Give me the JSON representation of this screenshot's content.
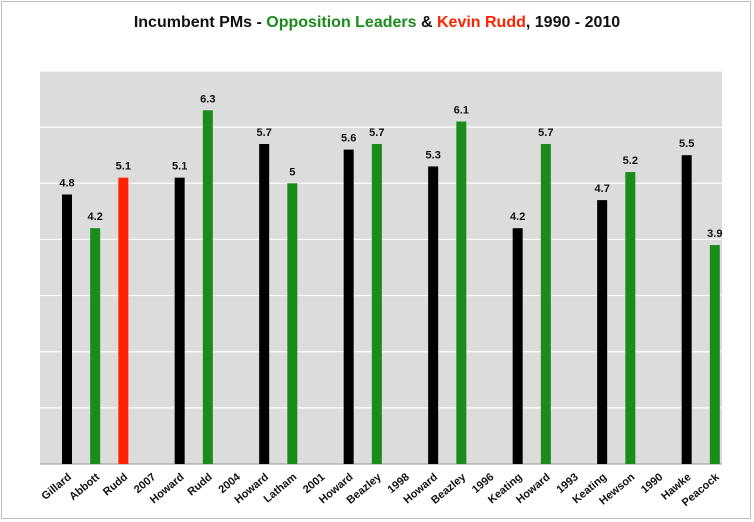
{
  "title_parts": {
    "part1": "Incumbent PMs - ",
    "part2": "Opposition  Leaders",
    "part3": " & ",
    "part4": "Kevin Rudd",
    "part5": ", 1990 - 2010"
  },
  "colors": {
    "incumbent": "#000000",
    "opposition": "#1a8c1a",
    "rudd": "#ff2200",
    "plot_bg": "#dcdcdc",
    "grid": "#ffffff"
  },
  "chart_data": {
    "type": "bar",
    "title": "Incumbent PMs - Opposition  Leaders & Kevin Rudd, 1990 - 2010",
    "xlabel": "",
    "ylabel": "",
    "ylim": [
      0,
      7
    ],
    "grid": true,
    "legend": "none",
    "categories": [
      "Gillard",
      "Abbott",
      "Rudd",
      "2007",
      "Howard",
      "Rudd",
      "2004",
      "Howard",
      "Latham",
      "2001",
      "Howard",
      "Beazley",
      "1998",
      "Howard",
      "Beazley",
      "1996",
      "Keating",
      "Howard",
      "1993",
      "Keating",
      "Hewson",
      "1990",
      "Hawke",
      "Peacock"
    ],
    "values": [
      4.8,
      4.2,
      5.1,
      null,
      5.1,
      6.3,
      null,
      5.7,
      5,
      null,
      5.6,
      5.7,
      null,
      5.3,
      6.1,
      null,
      4.2,
      5.7,
      null,
      4.7,
      5.2,
      null,
      5.5,
      3.9
    ],
    "value_labels": [
      "4.8",
      "4.2",
      "5.1",
      "",
      "5.1",
      "6.3",
      "",
      "5.7",
      "5",
      "",
      "5.6",
      "5.7",
      "",
      "5.3",
      "6.1",
      "",
      "4.2",
      "5.7",
      "",
      "4.7",
      "5.2",
      "",
      "5.5",
      "3.9"
    ],
    "bar_roles": [
      "incumbent",
      "opposition",
      "rudd",
      null,
      "incumbent",
      "opposition",
      null,
      "incumbent",
      "opposition",
      null,
      "incumbent",
      "opposition",
      null,
      "incumbent",
      "opposition",
      null,
      "incumbent",
      "opposition",
      null,
      "incumbent",
      "opposition",
      null,
      "incumbent",
      "opposition"
    ]
  }
}
